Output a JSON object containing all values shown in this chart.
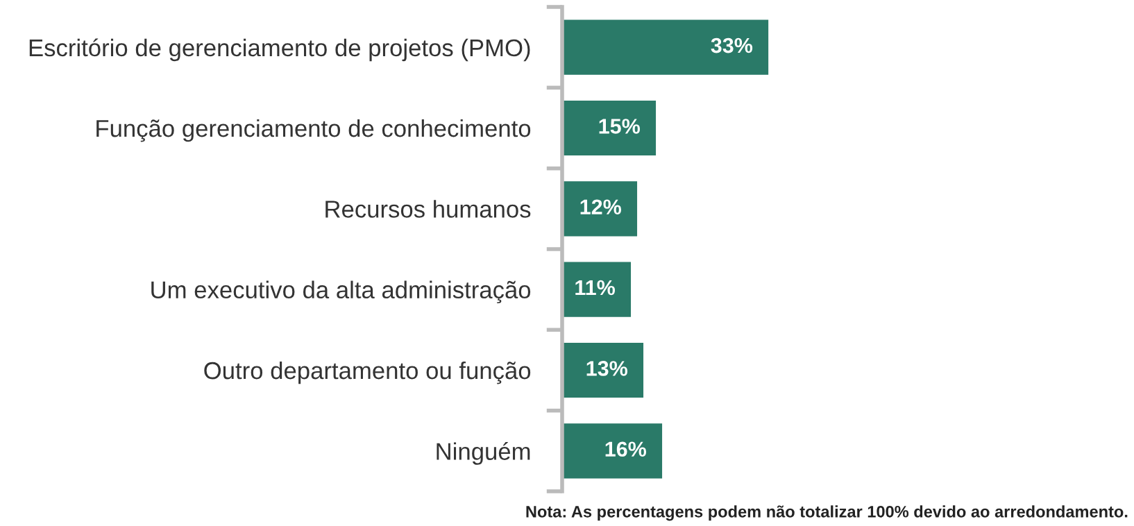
{
  "chart_data": {
    "type": "bar",
    "orientation": "horizontal",
    "categories": [
      "Escritório de gerenciamento de projetos (PMO)",
      "Função gerenciamento de conhecimento",
      "Recursos humanos",
      "Um executivo da alta administração",
      "Outro departamento ou função",
      "Ninguém"
    ],
    "values": [
      33,
      15,
      12,
      11,
      13,
      16
    ],
    "value_labels": [
      "33%",
      "15%",
      "12%",
      "11%",
      "13%",
      "16%"
    ],
    "color": "#2a7a68",
    "tick_labels": "y",
    "grid": false,
    "legend": false,
    "annotations": [
      "Nota: As percentagens podem não totalizar 100% devido ao arredondamento."
    ]
  }
}
